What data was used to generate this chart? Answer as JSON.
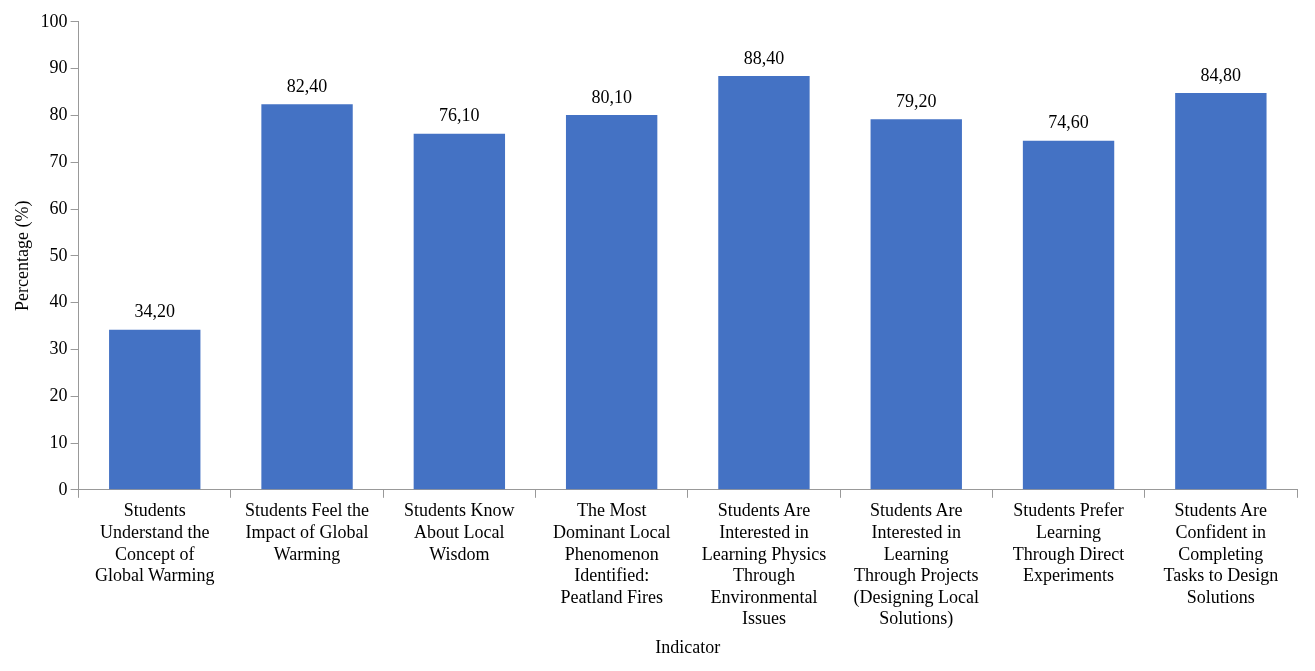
{
  "chart_data": {
    "type": "bar",
    "xlabel": "Indicator",
    "ylabel": "Percentage (%)",
    "categories": [
      "Students Understand the Concept of Global Warming",
      "Students Feel the Impact of Global Warming",
      "Students Know About Local Wisdom",
      "The Most Dominant Local Phenomenon Identified: Peatland Fires",
      "Students Are Interested in Learning Physics Through Environmental Issues",
      "Students Are Interested in Learning Through Projects (Designing Local Solutions)",
      "Students Prefer Learning Through Direct Experiments",
      "Students Are Confident in Completing Tasks to Design Solutions"
    ],
    "values": [
      34.2,
      82.4,
      76.1,
      80.1,
      88.4,
      79.2,
      74.6,
      84.8
    ],
    "value_labels": [
      "34,20",
      "82,40",
      "76,10",
      "80,10",
      "88,40",
      "79,20",
      "74,60",
      "84,80"
    ],
    "color": "#4472c4",
    "ylim": [
      0,
      100
    ],
    "yticks": [
      0,
      10,
      20,
      30,
      40,
      50,
      60,
      70,
      80,
      90,
      100
    ],
    "grid": false,
    "legend": false
  }
}
